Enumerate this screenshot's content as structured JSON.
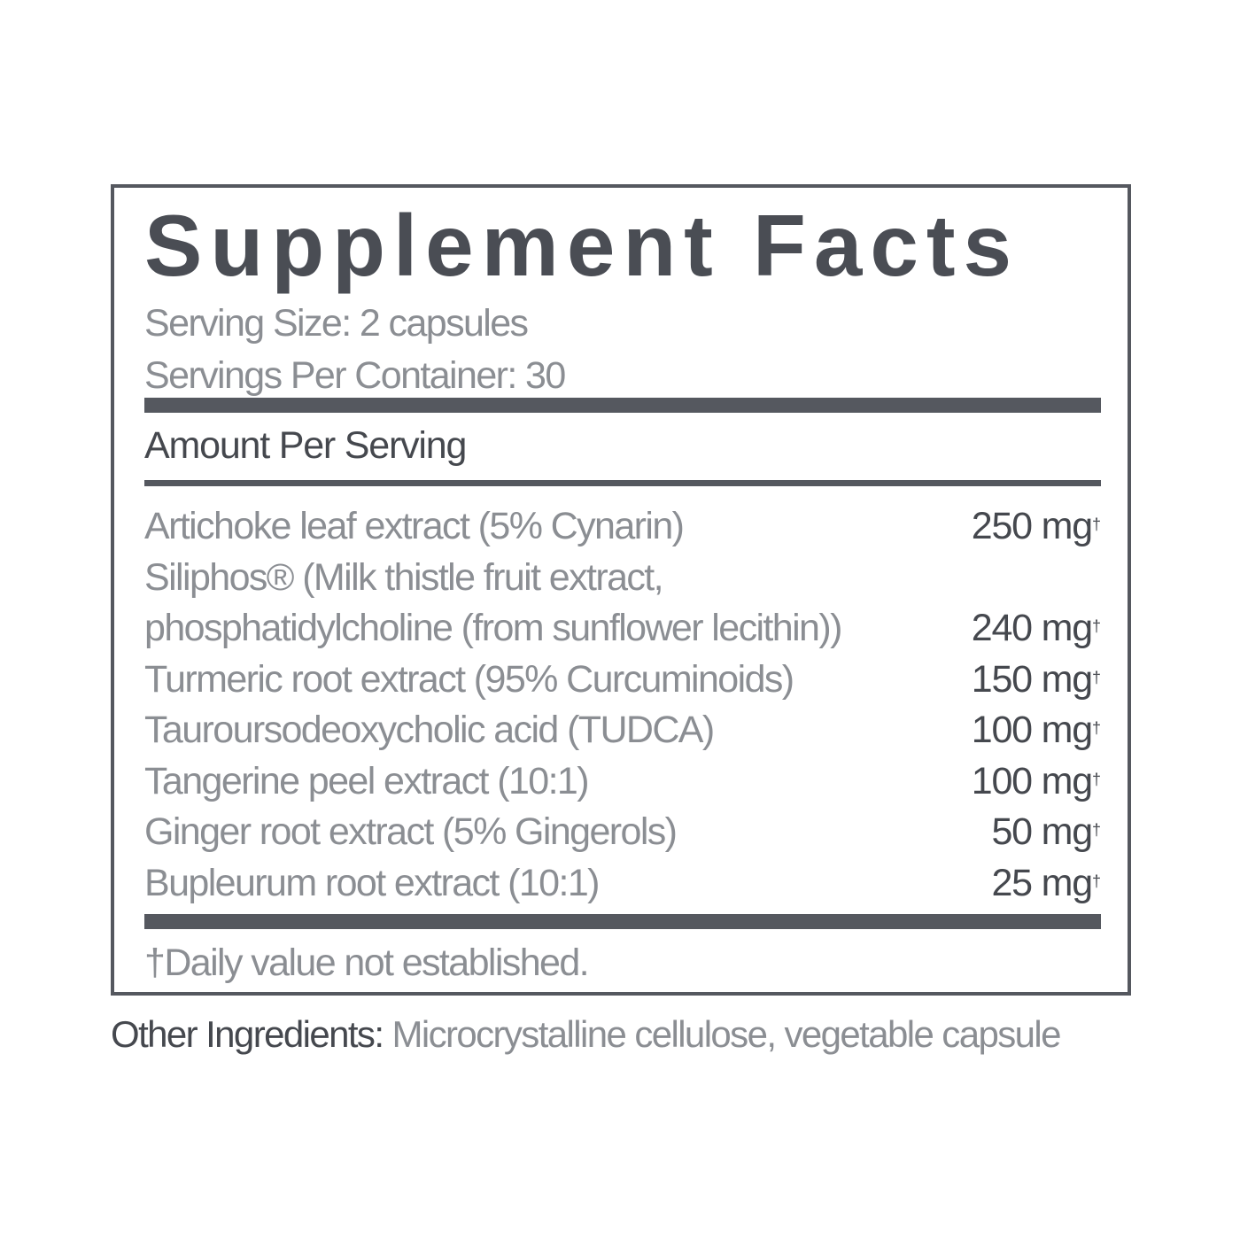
{
  "label": {
    "title": "Supplement Facts",
    "serving_size": "Serving Size: 2 capsules",
    "servings_per_container": "Servings Per Container: 30",
    "amount_header": "Amount Per Serving",
    "ingredients": [
      {
        "name": "Artichoke leaf extract (5% Cynarin)",
        "amount": "250 mg",
        "mark": "†"
      },
      {
        "name": "Siliphos® (Milk thistle fruit extract,",
        "amount": "",
        "mark": ""
      },
      {
        "name": "phosphatidylcholine (from sunflower lecithin))",
        "amount": "240 mg",
        "mark": "†"
      },
      {
        "name": "Turmeric root extract (95% Curcuminoids)",
        "amount": "150 mg",
        "mark": "†"
      },
      {
        "name": "Tauroursodeoxycholic acid (TUDCA)",
        "amount": "100 mg",
        "mark": "†"
      },
      {
        "name": "Tangerine peel extract (10:1)",
        "amount": "100 mg",
        "mark": "†"
      },
      {
        "name": "Ginger root extract (5% Gingerols)",
        "amount": "50 mg",
        "mark": "†"
      },
      {
        "name": "Bupleurum root extract  (10:1)",
        "amount": "25 mg",
        "mark": "†"
      }
    ],
    "footnote": "†Daily value not established."
  },
  "other_ingredients": {
    "label": "Other Ingredients:",
    "value": " Microcrystalline cellulose, vegetable capsule"
  },
  "colors": {
    "border": "#55585f",
    "title": "#4a4d54",
    "light_text": "#8b8e93"
  }
}
